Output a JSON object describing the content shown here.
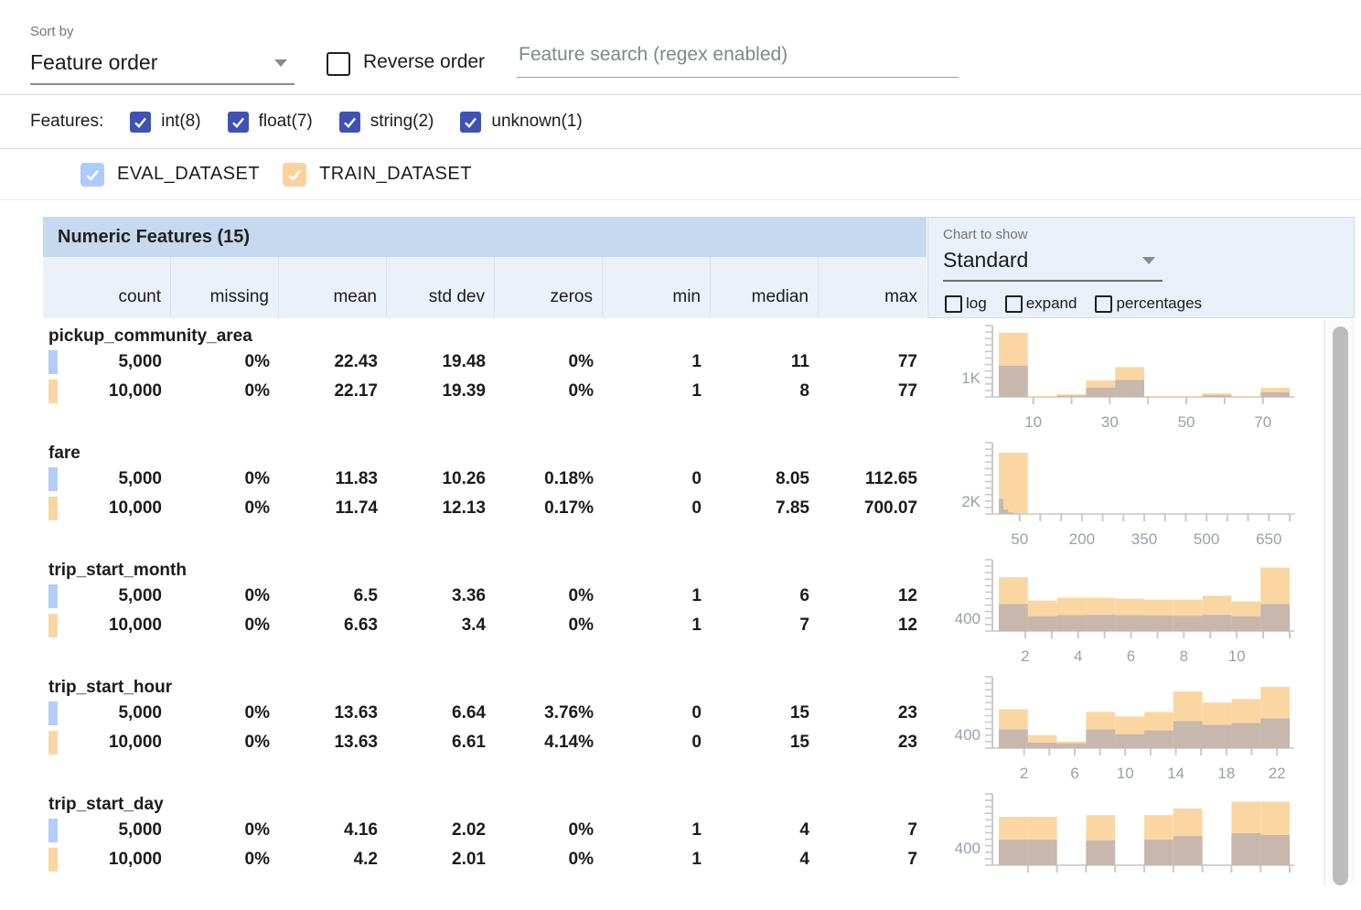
{
  "toolbar": {
    "sort_by_label": "Sort by",
    "sort_by_value": "Feature order",
    "reverse_order_label": "Reverse order",
    "search_placeholder": "Feature search (regex enabled)"
  },
  "filters": {
    "label": "Features:",
    "types": [
      {
        "label": "int(8)",
        "checked": true
      },
      {
        "label": "float(7)",
        "checked": true
      },
      {
        "label": "string(2)",
        "checked": true
      },
      {
        "label": "unknown(1)",
        "checked": true
      }
    ],
    "checkbox_color": "#3f51b5"
  },
  "datasets": [
    {
      "name": "EVAL_DATASET",
      "color": "#aecbfa",
      "swatch": "#b4cdf8",
      "checked": true
    },
    {
      "name": "TRAIN_DATASET",
      "color": "#fbd29e",
      "swatch": "#fad7a2",
      "checked": true
    }
  ],
  "table": {
    "title": "Numeric Features (15)",
    "columns": [
      "count",
      "missing",
      "mean",
      "std dev",
      "zeros",
      "min",
      "median",
      "max"
    ]
  },
  "chart_controls": {
    "label": "Chart to show",
    "selected": "Standard",
    "checkboxes": [
      "log",
      "expand",
      "percentages"
    ]
  },
  "features": [
    {
      "name": "pickup_community_area",
      "rows": [
        {
          "dataset": "EVAL_DATASET",
          "values": [
            "5,000",
            "0%",
            "22.43",
            "19.48",
            "0%",
            "1",
            "11",
            "77"
          ]
        },
        {
          "dataset": "TRAIN_DATASET",
          "values": [
            "10,000",
            "0%",
            "22.17",
            "19.39",
            "0%",
            "1",
            "8",
            "77"
          ]
        }
      ]
    },
    {
      "name": "fare",
      "rows": [
        {
          "dataset": "EVAL_DATASET",
          "values": [
            "5,000",
            "0%",
            "11.83",
            "10.26",
            "0.18%",
            "0",
            "8.05",
            "112.65"
          ]
        },
        {
          "dataset": "TRAIN_DATASET",
          "values": [
            "10,000",
            "0%",
            "11.74",
            "12.13",
            "0.17%",
            "0",
            "7.85",
            "700.07"
          ]
        }
      ]
    },
    {
      "name": "trip_start_month",
      "rows": [
        {
          "dataset": "EVAL_DATASET",
          "values": [
            "5,000",
            "0%",
            "6.5",
            "3.36",
            "0%",
            "1",
            "6",
            "12"
          ]
        },
        {
          "dataset": "TRAIN_DATASET",
          "values": [
            "10,000",
            "0%",
            "6.63",
            "3.4",
            "0%",
            "1",
            "7",
            "12"
          ]
        }
      ]
    },
    {
      "name": "trip_start_hour",
      "rows": [
        {
          "dataset": "EVAL_DATASET",
          "values": [
            "5,000",
            "0%",
            "13.63",
            "6.64",
            "3.76%",
            "0",
            "15",
            "23"
          ]
        },
        {
          "dataset": "TRAIN_DATASET",
          "values": [
            "10,000",
            "0%",
            "13.63",
            "6.61",
            "4.14%",
            "0",
            "15",
            "23"
          ]
        }
      ]
    },
    {
      "name": "trip_start_day",
      "rows": [
        {
          "dataset": "EVAL_DATASET",
          "values": [
            "5,000",
            "0%",
            "4.16",
            "2.02",
            "0%",
            "1",
            "4",
            "7"
          ]
        },
        {
          "dataset": "TRAIN_DATASET",
          "values": [
            "10,000",
            "0%",
            "4.2",
            "2.01",
            "0%",
            "1",
            "4",
            "7"
          ]
        }
      ]
    }
  ],
  "chart_data": [
    {
      "type": "bar",
      "feature": "pickup_community_area",
      "legend_position": "none",
      "grid": false,
      "x_range": [
        1,
        77
      ],
      "y_label": "1K",
      "y_label_value": 1000,
      "ymax": 3700,
      "series": [
        {
          "name": "TRAIN_DATASET",
          "values": [
            3330,
            40,
            140,
            860,
            1550,
            30,
            30,
            190,
            30,
            480
          ]
        },
        {
          "name": "EVAL_DATASET",
          "values": [
            1620,
            15,
            60,
            480,
            880,
            10,
            10,
            90,
            10,
            240
          ]
        }
      ],
      "x_ticks": [
        {
          "v": 10,
          "label": "10"
        },
        {
          "v": 20,
          "label": ""
        },
        {
          "v": 30,
          "label": "30"
        },
        {
          "v": 40,
          "label": ""
        },
        {
          "v": 50,
          "label": "50"
        },
        {
          "v": 60,
          "label": ""
        },
        {
          "v": 70,
          "label": "70"
        }
      ]
    },
    {
      "type": "bar",
      "feature": "fare",
      "legend_position": "none",
      "grid": false,
      "x_range": [
        0,
        700.07
      ],
      "y_label": "2K",
      "y_label_value": 2000,
      "ymax": 11300,
      "eval_bucket_width": 11.265,
      "series": [
        {
          "name": "TRAIN_DATASET",
          "values": [
            9700,
            60,
            25,
            12,
            8,
            5,
            3,
            2,
            1,
            1
          ]
        },
        {
          "name": "EVAL_DATASET",
          "values": [
            2400,
            700,
            250,
            120,
            60,
            30,
            15,
            8,
            4,
            2
          ]
        }
      ],
      "x_ticks": [
        {
          "v": 50,
          "label": "50"
        },
        {
          "v": 100,
          "label": ""
        },
        {
          "v": 150,
          "label": ""
        },
        {
          "v": 200,
          "label": "200"
        },
        {
          "v": 250,
          "label": ""
        },
        {
          "v": 300,
          "label": ""
        },
        {
          "v": 350,
          "label": "350"
        },
        {
          "v": 400,
          "label": ""
        },
        {
          "v": 450,
          "label": ""
        },
        {
          "v": 500,
          "label": "500"
        },
        {
          "v": 550,
          "label": ""
        },
        {
          "v": 600,
          "label": ""
        },
        {
          "v": 650,
          "label": "650"
        },
        {
          "v": 700,
          "label": ""
        }
      ]
    },
    {
      "type": "bar",
      "feature": "trip_start_month",
      "legend_position": "none",
      "grid": false,
      "x_range": [
        1,
        12
      ],
      "y_label": "400",
      "y_label_value": 400,
      "ymax": 2200,
      "series": [
        {
          "name": "TRAIN_DATASET",
          "values": [
            1660,
            940,
            1030,
            1030,
            1000,
            970,
            970,
            1090,
            915,
            1960
          ]
        },
        {
          "name": "EVAL_DATASET",
          "values": [
            830,
            460,
            490,
            500,
            490,
            480,
            470,
            500,
            455,
            830
          ]
        }
      ],
      "x_ticks": [
        {
          "v": 2,
          "label": "2"
        },
        {
          "v": 3,
          "label": ""
        },
        {
          "v": 4,
          "label": "4"
        },
        {
          "v": 5,
          "label": ""
        },
        {
          "v": 6,
          "label": "6"
        },
        {
          "v": 7,
          "label": ""
        },
        {
          "v": 8,
          "label": "8"
        },
        {
          "v": 9,
          "label": ""
        },
        {
          "v": 10,
          "label": "10"
        },
        {
          "v": 11,
          "label": ""
        },
        {
          "v": 12,
          "label": ""
        }
      ]
    },
    {
      "type": "bar",
      "feature": "trip_start_hour",
      "legend_position": "none",
      "grid": false,
      "x_range": [
        0,
        23
      ],
      "y_label": "400",
      "y_label_value": 400,
      "ymax": 2050,
      "series": [
        {
          "name": "TRAIN_DATASET",
          "values": [
            1120,
            375,
            190,
            1040,
            910,
            1040,
            1630,
            1310,
            1410,
            1760
          ]
        },
        {
          "name": "EVAL_DATASET",
          "values": [
            535,
            160,
            135,
            535,
            400,
            505,
            775,
            665,
            720,
            855
          ]
        }
      ],
      "x_ticks": [
        {
          "v": 2,
          "label": "2"
        },
        {
          "v": 4,
          "label": ""
        },
        {
          "v": 6,
          "label": "6"
        },
        {
          "v": 8,
          "label": ""
        },
        {
          "v": 10,
          "label": "10"
        },
        {
          "v": 12,
          "label": ""
        },
        {
          "v": 14,
          "label": "14"
        },
        {
          "v": 16,
          "label": ""
        },
        {
          "v": 18,
          "label": "18"
        },
        {
          "v": 20,
          "label": ""
        },
        {
          "v": 22,
          "label": "22"
        }
      ]
    },
    {
      "type": "bar",
      "feature": "trip_start_day",
      "legend_position": "none",
      "grid": false,
      "x_range": [
        1,
        7
      ],
      "y_label": "400",
      "y_label_value": 400,
      "ymax": 1650,
      "series": [
        {
          "name": "TRAIN_DATASET",
          "values": [
            1120,
            1120,
            0,
            1160,
            0,
            1160,
            1310,
            0,
            1470,
            1470
          ]
        },
        {
          "name": "EVAL_DATASET",
          "values": [
            590,
            590,
            0,
            570,
            0,
            590,
            670,
            0,
            740,
            700
          ]
        }
      ],
      "x_ticks": [
        {
          "f": 0.1,
          "label": ""
        },
        {
          "f": 0.2,
          "label": ""
        },
        {
          "f": 0.3,
          "label": ""
        },
        {
          "f": 0.4,
          "label": ""
        },
        {
          "f": 0.5,
          "label": ""
        },
        {
          "f": 0.6,
          "label": ""
        },
        {
          "f": 0.7,
          "label": ""
        },
        {
          "f": 0.8,
          "label": ""
        },
        {
          "f": 0.9,
          "label": ""
        },
        {
          "f": 1.0,
          "label": ""
        }
      ]
    }
  ],
  "colors": {
    "train_bar": "#fad7a2",
    "overlap_bar": "#c7b7ad",
    "axis": "#c9c9c9",
    "axis_label": "#9aa0a6",
    "header_bg": "#c7d9ee",
    "subheader_bg": "#ebf1f9",
    "panel_bg": "#e9f0fa"
  }
}
